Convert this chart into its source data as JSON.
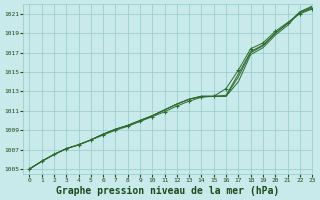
{
  "title": "Graphe pression niveau de la mer (hPa)",
  "background_color": "#c8eaea",
  "grid_color": "#96c8c8",
  "line_color": "#2d6a2d",
  "marker_color": "#2d6a2d",
  "xlim": [
    -0.5,
    23
  ],
  "ylim": [
    1004.5,
    1022
  ],
  "yticks": [
    1005,
    1007,
    1009,
    1011,
    1013,
    1015,
    1017,
    1019,
    1021
  ],
  "xticks": [
    0,
    1,
    2,
    3,
    4,
    5,
    6,
    7,
    8,
    9,
    10,
    11,
    12,
    13,
    14,
    15,
    16,
    17,
    18,
    19,
    20,
    21,
    22,
    23
  ],
  "title_color": "#1a4a1a",
  "title_fontsize": 7,
  "s1": [
    1005.0,
    1005.8,
    1006.5,
    1007.1,
    1007.5,
    1008.0,
    1008.5,
    1009.0,
    1009.4,
    1009.9,
    1010.4,
    1010.9,
    1011.5,
    1012.0,
    1012.4,
    1012.5,
    1013.3,
    1015.2,
    1017.4,
    1018.0,
    1019.2,
    1020.1,
    1021.0,
    1021.5
  ],
  "s2": [
    1005.0,
    1005.8,
    1006.5,
    1007.1,
    1007.5,
    1008.0,
    1008.6,
    1009.1,
    1009.5,
    1010.0,
    1010.5,
    1011.1,
    1011.7,
    1012.2,
    1012.5,
    1012.5,
    1012.6,
    1014.8,
    1017.1,
    1017.8,
    1019.0,
    1020.0,
    1021.1,
    1021.6
  ],
  "s3": [
    1005.0,
    1005.8,
    1006.5,
    1007.1,
    1007.5,
    1008.0,
    1008.6,
    1009.1,
    1009.5,
    1010.0,
    1010.5,
    1011.1,
    1011.7,
    1012.2,
    1012.5,
    1012.5,
    1012.5,
    1014.5,
    1017.0,
    1017.7,
    1019.0,
    1020.0,
    1021.2,
    1021.7
  ],
  "s4": [
    1005.0,
    1005.8,
    1006.5,
    1007.1,
    1007.5,
    1008.0,
    1008.6,
    1009.1,
    1009.5,
    1010.0,
    1010.5,
    1011.1,
    1011.7,
    1012.2,
    1012.5,
    1012.5,
    1012.5,
    1014.0,
    1016.8,
    1017.5,
    1018.8,
    1019.8,
    1021.2,
    1021.8
  ]
}
